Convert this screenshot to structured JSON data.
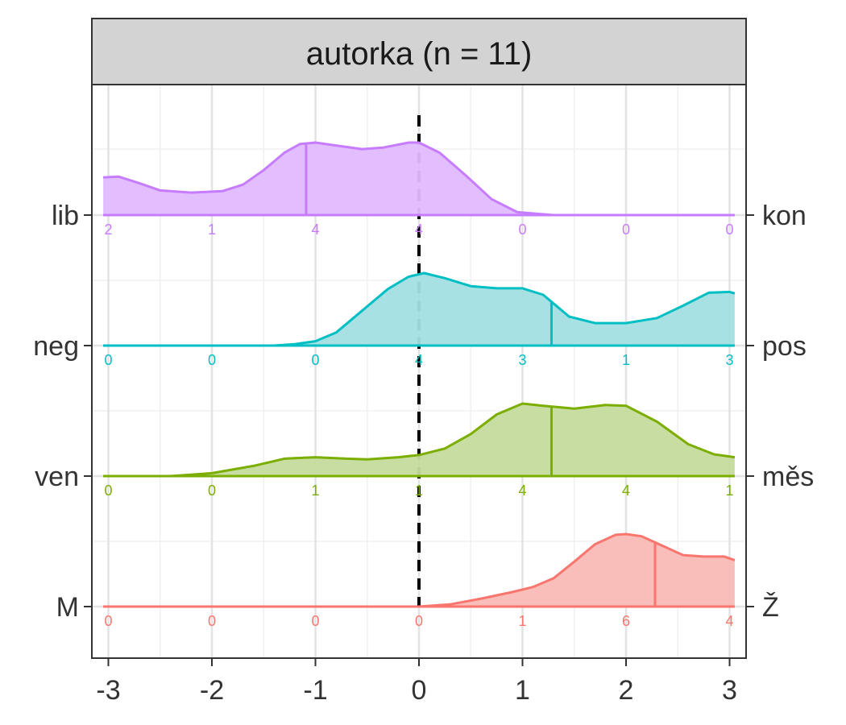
{
  "chart_data": {
    "type": "ridgeline",
    "facet_title": "autorka (n = 11)",
    "x": {
      "ticks": [
        -3,
        -2,
        -1,
        0,
        1,
        2,
        3
      ],
      "tick_labels": [
        "-3",
        "-2",
        "-1",
        "0",
        "1",
        "2",
        "3"
      ],
      "range": [
        -3.12,
        3.15
      ]
    },
    "reference_line_x": 0,
    "grid": true,
    "series": [
      {
        "left_label": "lib",
        "right_label": "kon",
        "color": "#C77CFF",
        "fill": "#E0BBFF",
        "mean": -1.09,
        "counts": [
          2,
          1,
          4,
          4,
          0,
          0,
          0
        ],
        "density": [
          [
            -3.05,
            0.52
          ],
          [
            -2.9,
            0.53
          ],
          [
            -2.7,
            0.44
          ],
          [
            -2.5,
            0.34
          ],
          [
            -2.2,
            0.31
          ],
          [
            -1.9,
            0.33
          ],
          [
            -1.7,
            0.42
          ],
          [
            -1.5,
            0.62
          ],
          [
            -1.3,
            0.86
          ],
          [
            -1.15,
            0.98
          ],
          [
            -1.0,
            1.0
          ],
          [
            -0.8,
            0.96
          ],
          [
            -0.55,
            0.91
          ],
          [
            -0.35,
            0.93
          ],
          [
            -0.1,
            1.0
          ],
          [
            0.0,
            1.0
          ],
          [
            0.2,
            0.86
          ],
          [
            0.45,
            0.55
          ],
          [
            0.7,
            0.22
          ],
          [
            0.95,
            0.04
          ],
          [
            1.3,
            0.0
          ],
          [
            3.05,
            0.0
          ]
        ]
      },
      {
        "left_label": "neg",
        "right_label": "pos",
        "color": "#00BFC4",
        "fill": "#A3DFE1",
        "mean": 1.28,
        "counts": [
          0,
          0,
          0,
          4,
          3,
          1,
          3
        ],
        "density": [
          [
            -3.05,
            0.0
          ],
          [
            -1.4,
            0.0
          ],
          [
            -1.2,
            0.02
          ],
          [
            -1.0,
            0.06
          ],
          [
            -0.8,
            0.18
          ],
          [
            -0.55,
            0.48
          ],
          [
            -0.3,
            0.78
          ],
          [
            -0.1,
            0.95
          ],
          [
            0.05,
            1.0
          ],
          [
            0.25,
            0.93
          ],
          [
            0.5,
            0.82
          ],
          [
            0.75,
            0.79
          ],
          [
            1.0,
            0.79
          ],
          [
            1.2,
            0.7
          ],
          [
            1.45,
            0.4
          ],
          [
            1.7,
            0.31
          ],
          [
            2.0,
            0.31
          ],
          [
            2.3,
            0.38
          ],
          [
            2.55,
            0.55
          ],
          [
            2.8,
            0.73
          ],
          [
            3.0,
            0.74
          ],
          [
            3.05,
            0.72
          ]
        ]
      },
      {
        "left_label": "ven",
        "right_label": "měs",
        "color": "#7CAE00",
        "fill": "#C5DB9D",
        "mean": 1.28,
        "counts": [
          0,
          0,
          1,
          1,
          4,
          4,
          1
        ],
        "density": [
          [
            -3.05,
            0.0
          ],
          [
            -2.4,
            0.0
          ],
          [
            -2.0,
            0.04
          ],
          [
            -1.6,
            0.14
          ],
          [
            -1.3,
            0.24
          ],
          [
            -1.0,
            0.26
          ],
          [
            -0.7,
            0.24
          ],
          [
            -0.5,
            0.23
          ],
          [
            -0.2,
            0.26
          ],
          [
            0.0,
            0.29
          ],
          [
            0.25,
            0.38
          ],
          [
            0.5,
            0.58
          ],
          [
            0.75,
            0.85
          ],
          [
            1.0,
            1.0
          ],
          [
            1.2,
            0.97
          ],
          [
            1.5,
            0.93
          ],
          [
            1.8,
            0.98
          ],
          [
            2.0,
            0.97
          ],
          [
            2.3,
            0.75
          ],
          [
            2.6,
            0.44
          ],
          [
            2.85,
            0.3
          ],
          [
            3.05,
            0.26
          ]
        ]
      },
      {
        "left_label": "M",
        "right_label": "Ž",
        "color": "#F8766D",
        "fill": "#F9B9B6",
        "mean": 2.28,
        "counts": [
          0,
          0,
          0,
          0,
          1,
          6,
          4
        ],
        "density": [
          [
            -3.05,
            0.0
          ],
          [
            0.0,
            0.0
          ],
          [
            0.3,
            0.03
          ],
          [
            0.6,
            0.11
          ],
          [
            0.9,
            0.2
          ],
          [
            1.1,
            0.27
          ],
          [
            1.3,
            0.39
          ],
          [
            1.5,
            0.62
          ],
          [
            1.7,
            0.86
          ],
          [
            1.9,
            0.99
          ],
          [
            2.0,
            1.0
          ],
          [
            2.15,
            0.97
          ],
          [
            2.35,
            0.84
          ],
          [
            2.55,
            0.71
          ],
          [
            2.75,
            0.69
          ],
          [
            2.95,
            0.69
          ],
          [
            3.05,
            0.64
          ]
        ]
      }
    ]
  }
}
